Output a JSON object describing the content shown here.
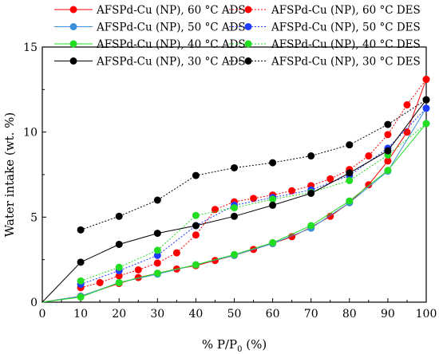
{
  "chart_data": {
    "type": "line",
    "xlabel": "% P/P",
    "xlabel_sub": "0",
    "xlabel_suffix": " (%)",
    "ylabel": "Water intake (wt. %)",
    "xlim": [
      0,
      100
    ],
    "ylim": [
      0,
      15
    ],
    "xticks": [
      "0",
      "10",
      "20",
      "30",
      "40",
      "50",
      "60",
      "70",
      "80",
      "90",
      "100"
    ],
    "xtick_values": [
      0,
      10,
      20,
      30,
      40,
      50,
      60,
      70,
      80,
      90,
      100
    ],
    "yticks": [
      "0",
      "5",
      "10",
      "15"
    ],
    "ytick_values": [
      0,
      5,
      10,
      15
    ],
    "grid": false,
    "legend_position": "top",
    "series": [
      {
        "name": "AFSPd-Cu (NP), 60 °C ADS",
        "color": "#ff0000",
        "style": "solid",
        "x": [
          0,
          10,
          20,
          25,
          30,
          35,
          40,
          45,
          50,
          55,
          60,
          65,
          70,
          75,
          80,
          85,
          90,
          95,
          100
        ],
        "y": [
          0,
          0.35,
          1.1,
          1.45,
          1.7,
          1.95,
          2.15,
          2.45,
          2.75,
          3.1,
          3.45,
          3.85,
          4.4,
          5.05,
          5.85,
          6.9,
          8.3,
          10.0,
          13.1
        ]
      },
      {
        "name": "AFSPd-Cu (NP), 60 °C DES",
        "color": "#ff0000",
        "style": "dotted",
        "x": [
          10,
          15,
          20,
          25,
          30,
          35,
          40,
          45,
          50,
          55,
          60,
          65,
          70,
          75,
          80,
          85,
          90,
          95,
          100
        ],
        "y": [
          0.85,
          1.15,
          1.55,
          1.9,
          2.3,
          2.9,
          3.95,
          5.45,
          5.9,
          6.1,
          6.3,
          6.55,
          6.85,
          7.25,
          7.8,
          8.6,
          9.85,
          11.6,
          13.1
        ]
      },
      {
        "name": "AFSPd-Cu (NP), 50 °C ADS",
        "color": "#3a8fd9",
        "style": "solid",
        "x": [
          0,
          10,
          20,
          30,
          40,
          50,
          60,
          70,
          80,
          90,
          100
        ],
        "y": [
          0,
          0.35,
          1.15,
          1.65,
          2.2,
          2.75,
          3.45,
          4.35,
          5.85,
          7.7,
          11.4
        ]
      },
      {
        "name": "AFSPd-Cu (NP), 50 °C DES",
        "color": "#1e3bff",
        "style": "dotted",
        "x": [
          10,
          20,
          30,
          40,
          50,
          60,
          70,
          80,
          90,
          100
        ],
        "y": [
          1.05,
          1.85,
          2.75,
          4.5,
          5.7,
          6.15,
          6.6,
          7.45,
          9.05,
          11.4
        ]
      },
      {
        "name": "AFSPd-Cu (NP), 40 °C ADS",
        "color": "#22dd22",
        "style": "solid",
        "x": [
          0,
          10,
          20,
          30,
          40,
          50,
          60,
          70,
          80,
          90,
          100
        ],
        "y": [
          0,
          0.3,
          1.15,
          1.7,
          2.2,
          2.8,
          3.5,
          4.5,
          5.95,
          7.75,
          10.5
        ]
      },
      {
        "name": "AFSPd-Cu (NP), 40 °C DES",
        "color": "#22dd22",
        "style": "dotted",
        "x": [
          10,
          20,
          30,
          40,
          50,
          60,
          70,
          80,
          90,
          100
        ],
        "y": [
          1.25,
          2.05,
          3.05,
          5.1,
          5.55,
          6.05,
          6.45,
          7.15,
          8.65,
          10.5
        ]
      },
      {
        "name": "AFSPd-Cu (NP), 30 °C ADS",
        "color": "#000000",
        "style": "solid",
        "x": [
          0,
          10,
          20,
          30,
          40,
          50,
          60,
          70,
          80,
          90,
          100
        ],
        "y": [
          0,
          2.35,
          3.4,
          4.05,
          4.5,
          5.05,
          5.7,
          6.4,
          7.6,
          8.9,
          11.9
        ]
      },
      {
        "name": "AFSPd-Cu (NP), 30 °C DES",
        "color": "#000000",
        "style": "dotted",
        "x": [
          10,
          20,
          30,
          40,
          50,
          60,
          70,
          80,
          90,
          100
        ],
        "y": [
          4.25,
          5.05,
          6.0,
          7.45,
          7.9,
          8.2,
          8.6,
          9.25,
          10.45,
          11.9
        ]
      }
    ],
    "legend_order": [
      0,
      1,
      2,
      3,
      4,
      5,
      6,
      7
    ]
  }
}
